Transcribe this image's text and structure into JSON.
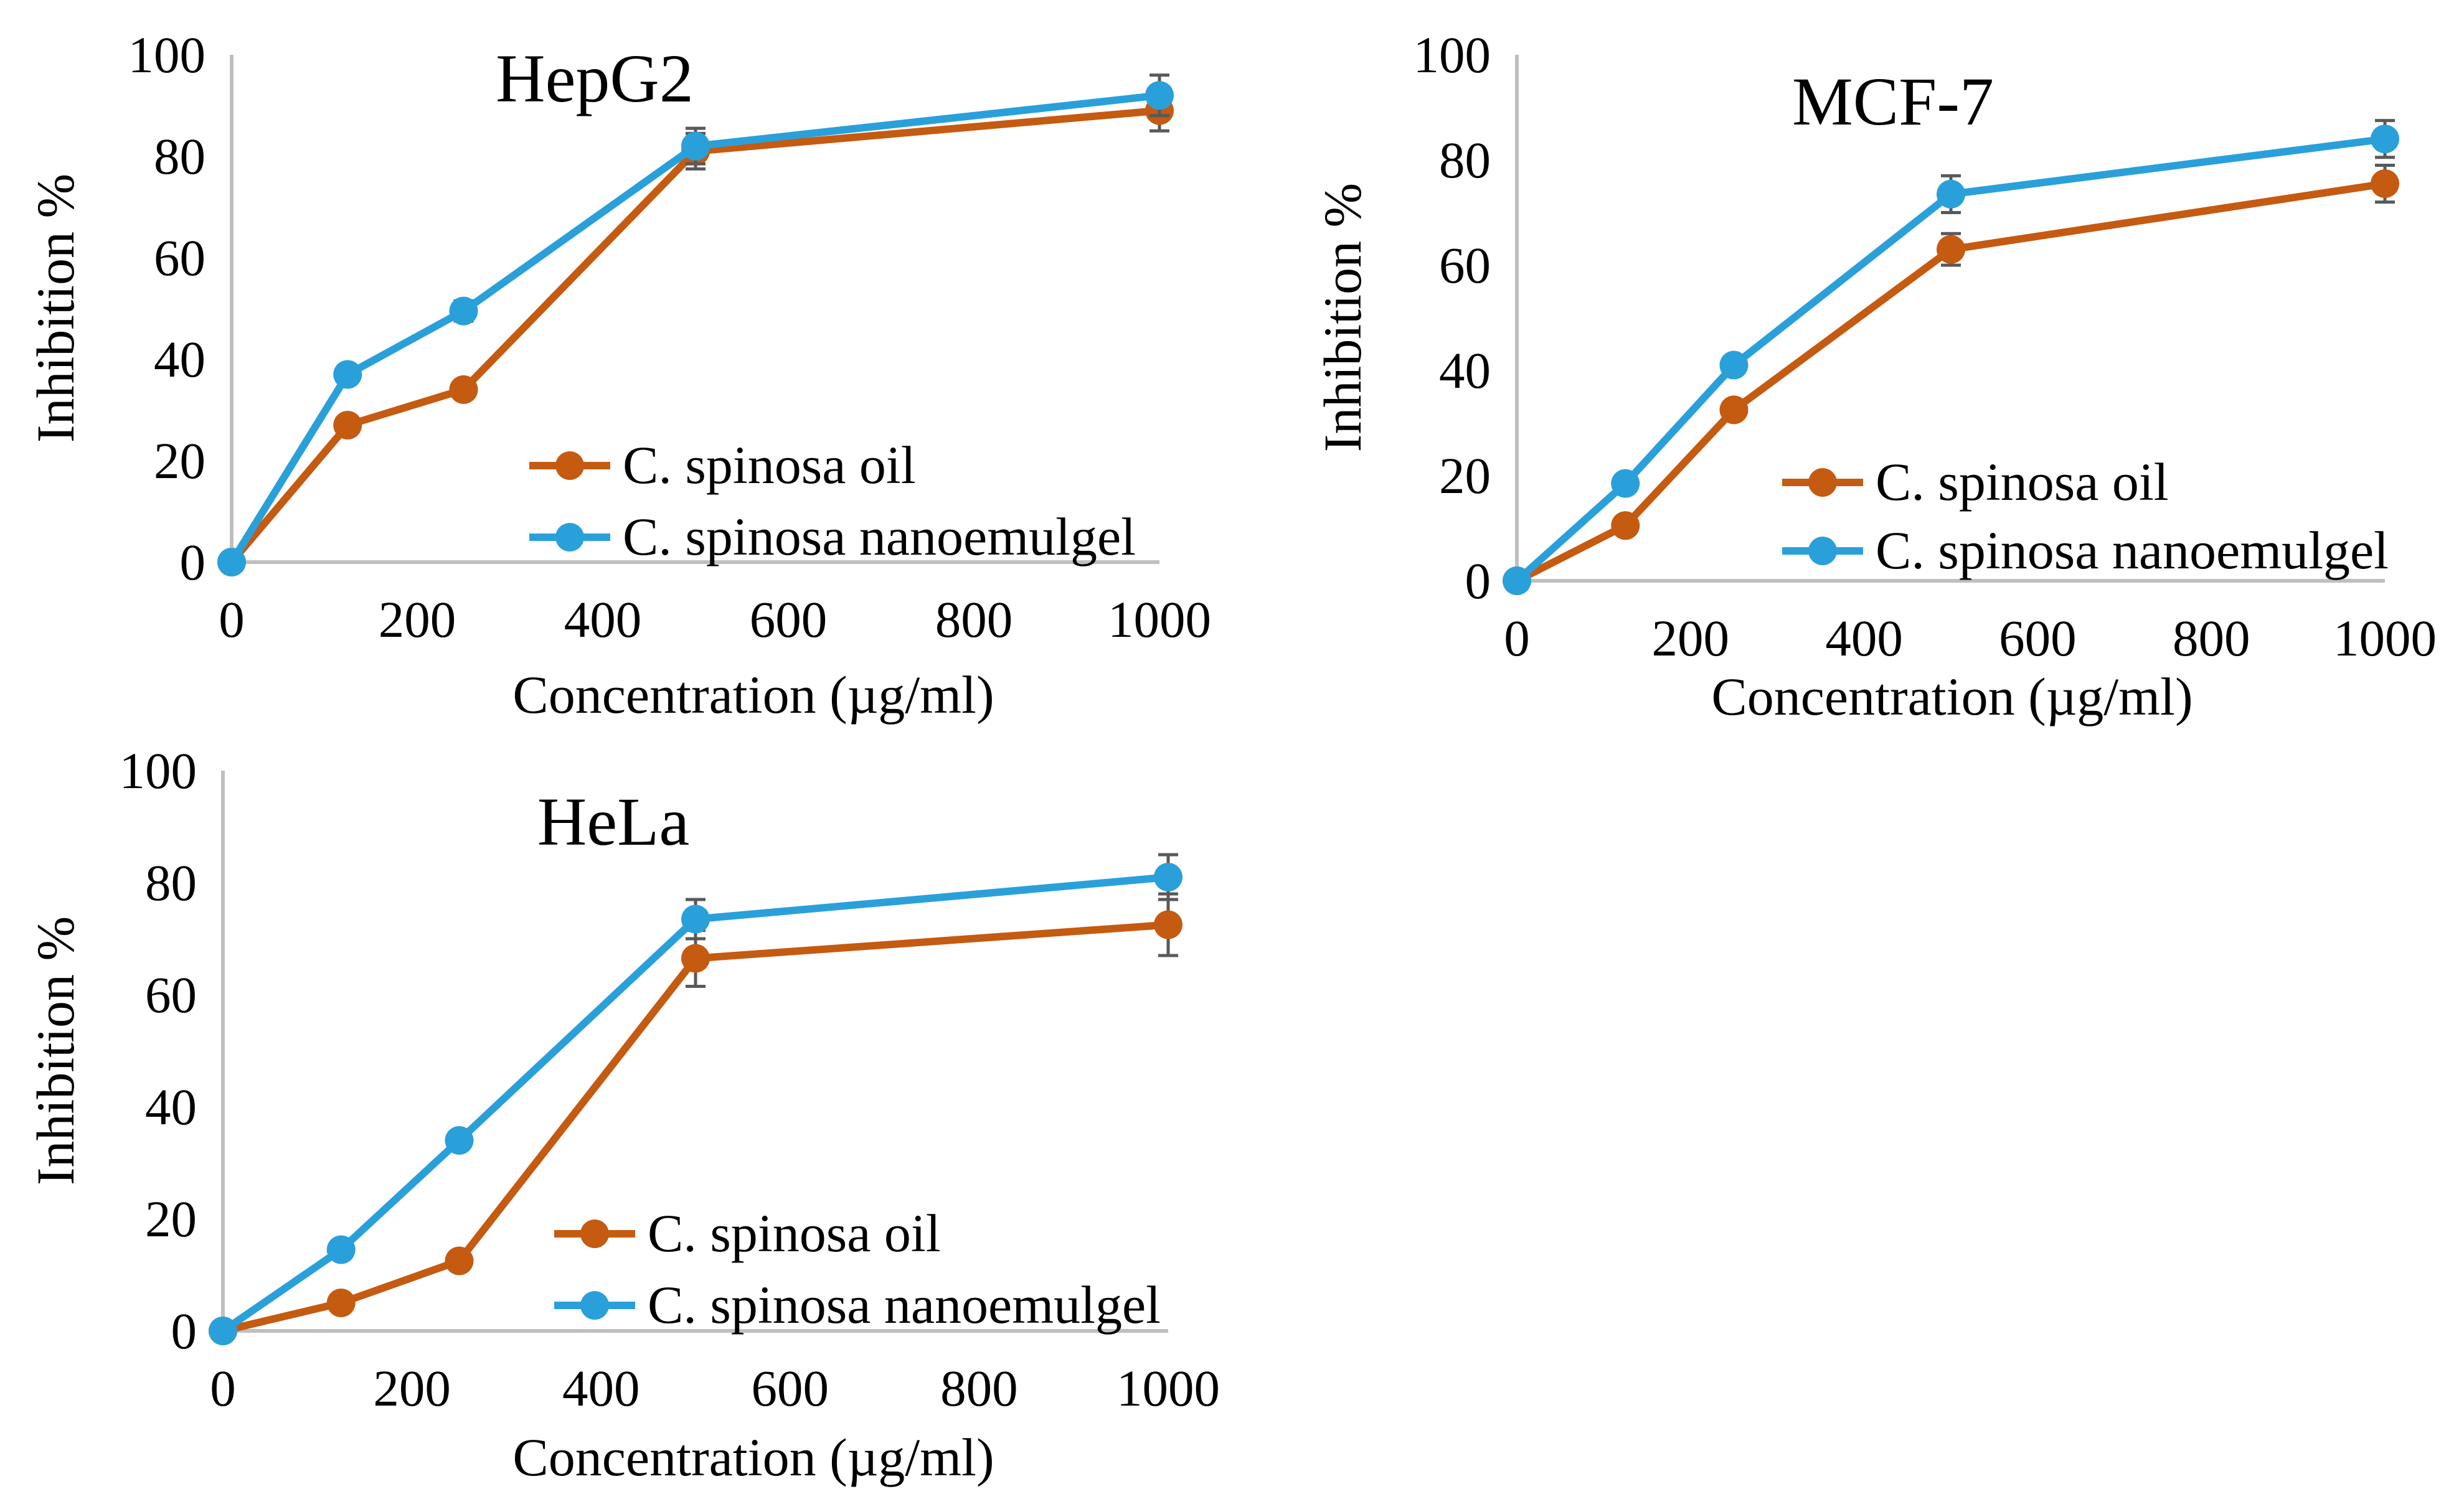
{
  "colors": {
    "oil": "#C55A11",
    "nanoemulgel": "#2AA0DA",
    "axis": "#BFBFBF",
    "error_bar": "#595959"
  },
  "chart_data": [
    {
      "type": "line",
      "title": "HepG2",
      "xlabel": "Concentration (µg/ml)",
      "ylabel": "Inhibition %",
      "xlim": [
        0,
        1000
      ],
      "ylim": [
        0,
        100
      ],
      "x_ticks": [
        "0",
        "200",
        "400",
        "600",
        "800",
        "1000"
      ],
      "y_ticks": [
        "0",
        "20",
        "40",
        "60",
        "80",
        "100"
      ],
      "x": [
        0,
        125,
        250,
        500,
        1000
      ],
      "legend_position": "lower-right",
      "series": [
        {
          "name": "C. spinosa oil",
          "color_key": "oil",
          "values": [
            0,
            27,
            34,
            81,
            89
          ],
          "errors": [
            0,
            0.8,
            1,
            3.5,
            4
          ]
        },
        {
          "name": "C. spinosa nanoemulgel",
          "color_key": "nanoemulgel",
          "values": [
            0,
            37,
            49.5,
            82,
            92
          ],
          "errors": [
            0,
            0.8,
            2,
            3.5,
            4
          ]
        }
      ]
    },
    {
      "type": "line",
      "title": "MCF-7",
      "xlabel": "Concentration (µg/ml)",
      "ylabel": "Inhibition %",
      "xlim": [
        0,
        1000
      ],
      "ylim": [
        0,
        100
      ],
      "x_ticks": [
        "0",
        "200",
        "400",
        "600",
        "800",
        "1000"
      ],
      "y_ticks": [
        "0",
        "20",
        "40",
        "60",
        "80",
        "100"
      ],
      "x": [
        0,
        125,
        250,
        500,
        1000
      ],
      "legend_position": "lower-right",
      "series": [
        {
          "name": "C. spinosa oil",
          "color_key": "oil",
          "values": [
            0,
            10.5,
            32.5,
            63,
            75.5
          ],
          "errors": [
            0,
            0.8,
            1,
            3,
            3.5
          ]
        },
        {
          "name": "C. spinosa nanoemulgel",
          "color_key": "nanoemulgel",
          "values": [
            0,
            18.5,
            41,
            73.5,
            84
          ],
          "errors": [
            0,
            0.8,
            1.2,
            3.5,
            3.5
          ]
        }
      ]
    },
    {
      "type": "line",
      "title": "HeLa",
      "xlabel": "Concentration (µg/ml)",
      "ylabel": "Inhibition %",
      "xlim": [
        0,
        1000
      ],
      "ylim": [
        0,
        100
      ],
      "x_ticks": [
        "0",
        "200",
        "400",
        "600",
        "800",
        "1000"
      ],
      "y_ticks": [
        "0",
        "20",
        "40",
        "60",
        "80",
        "100"
      ],
      "x": [
        0,
        125,
        250,
        500,
        1000
      ],
      "legend_position": "lower-right",
      "series": [
        {
          "name": "C. spinosa oil",
          "color_key": "oil",
          "values": [
            0,
            5,
            12.5,
            66.5,
            72.5
          ],
          "errors": [
            0,
            0.5,
            0.8,
            5,
            5.5
          ]
        },
        {
          "name": "C. spinosa nanoemulgel",
          "color_key": "nanoemulgel",
          "values": [
            0,
            14.5,
            34,
            73.5,
            81
          ],
          "errors": [
            0,
            0.8,
            1,
            3.5,
            4
          ]
        }
      ]
    }
  ]
}
